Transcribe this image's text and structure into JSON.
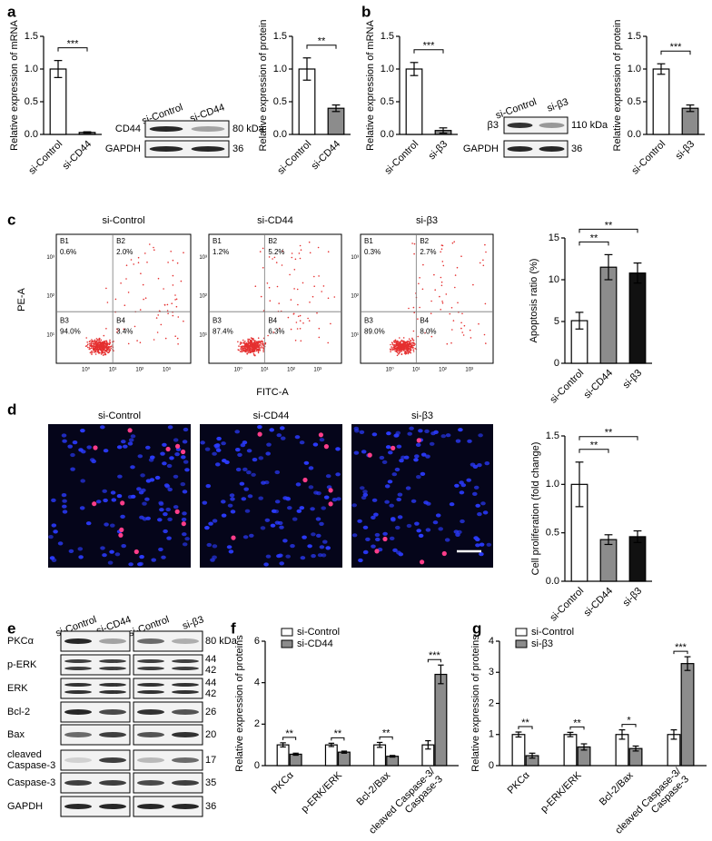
{
  "panel_labels": [
    "a",
    "b",
    "c",
    "d",
    "e",
    "f",
    "g"
  ],
  "chart_data": [
    {
      "type": "bar",
      "y_label": "Relative expression of mRNA",
      "categories": [
        "si-Control",
        "si-CD44"
      ],
      "values": [
        1.0,
        0.03
      ],
      "errors": [
        0.13,
        0.01
      ],
      "colors": [
        "#ffffff",
        "#8c8c8c"
      ],
      "ylim": [
        0,
        1.5
      ],
      "yticks": [
        {
          "value": 0,
          "label": "0.0"
        },
        0.5,
        {
          "value": 1,
          "label": "1.0"
        },
        1.5
      ],
      "significance": [
        "***"
      ]
    },
    {
      "type": "bar",
      "y_label": "Relative expression of protein",
      "categories": [
        "si-Control",
        "si-CD44"
      ],
      "values": [
        1.0,
        0.4
      ],
      "errors": [
        0.17,
        0.05
      ],
      "colors": [
        "#ffffff",
        "#8c8c8c"
      ],
      "ylim": [
        0,
        1.5
      ],
      "yticks": [
        {
          "value": 0,
          "label": "0.0"
        },
        0.5,
        {
          "value": 1,
          "label": "1.0"
        },
        1.5
      ],
      "significance": [
        "**"
      ]
    },
    {
      "type": "bar",
      "y_label": "Relative expression of mRNA",
      "categories": [
        "si-Control",
        "si-β3"
      ],
      "values": [
        1.0,
        0.06
      ],
      "errors": [
        0.1,
        0.04
      ],
      "colors": [
        "#ffffff",
        "#8c8c8c"
      ],
      "ylim": [
        0,
        1.5
      ],
      "yticks": [
        {
          "value": 0,
          "label": "0.0"
        },
        0.5,
        {
          "value": 1,
          "label": "1.0"
        },
        1.5
      ],
      "significance": [
        "***"
      ]
    },
    {
      "type": "bar",
      "y_label": "Relative expression of protein",
      "categories": [
        "si-Control",
        "si-β3"
      ],
      "values": [
        1.0,
        0.4
      ],
      "errors": [
        0.08,
        0.05
      ],
      "colors": [
        "#ffffff",
        "#8c8c8c"
      ],
      "ylim": [
        0,
        1.5
      ],
      "yticks": [
        {
          "value": 0,
          "label": "0.0"
        },
        0.5,
        {
          "value": 1,
          "label": "1.0"
        },
        1.5
      ],
      "significance": [
        "***"
      ]
    },
    {
      "type": "bar",
      "y_label": "Apoptosis ratio (%)",
      "categories": [
        "si-Control",
        "si-CD44",
        "si-β3"
      ],
      "values": [
        5.1,
        11.5,
        10.8
      ],
      "errors": [
        1.0,
        1.5,
        1.2
      ],
      "colors": [
        "#ffffff",
        "#8c8c8c",
        "#111111"
      ],
      "ylim": [
        0,
        15
      ],
      "yticks": [
        0,
        5,
        10,
        15
      ],
      "significance": [
        "**",
        "**"
      ]
    },
    {
      "type": "bar",
      "y_label": "Cell proliferation (fold change)",
      "categories": [
        "si-Control",
        "si-CD44",
        "si-β3"
      ],
      "values": [
        1.0,
        0.43,
        0.46
      ],
      "errors": [
        0.23,
        0.05,
        0.06
      ],
      "colors": [
        "#ffffff",
        "#8c8c8c",
        "#111111"
      ],
      "ylim": [
        0,
        1.5
      ],
      "yticks": [
        {
          "value": 0,
          "label": "0.0"
        },
        0.5,
        {
          "value": 1,
          "label": "1.0"
        },
        1.5
      ],
      "significance": [
        "**",
        "**"
      ]
    },
    {
      "type": "grouped-bar",
      "y_label": "Relative expression of proteins",
      "categories": [
        "PKCα",
        "p-ERK/ERK",
        "Bcl-2/Bax",
        "cleaved Caspase-3/\nCaspase-3"
      ],
      "series": [
        {
          "name": "si-Control",
          "color": "#ffffff",
          "values": [
            1,
            1,
            1,
            1
          ],
          "errors": [
            0.1,
            0.08,
            0.12,
            0.2
          ]
        },
        {
          "name": "si-CD44",
          "color": "#8c8c8c",
          "values": [
            0.55,
            0.65,
            0.45,
            4.4
          ],
          "errors": [
            0.05,
            0.05,
            0.04,
            0.45
          ]
        }
      ],
      "ylim": [
        0,
        6
      ],
      "yticks": [
        0,
        2,
        4,
        6
      ],
      "legend": "upper-left",
      "significance": [
        "**",
        "**",
        "**",
        "***"
      ]
    },
    {
      "type": "grouped-bar",
      "y_label": "Relative expression of proteins",
      "categories": [
        "PKCα",
        "p-ERK/ERK",
        "Bcl-2/Bax",
        "cleaved Caspase-3/\nCaspase-3"
      ],
      "series": [
        {
          "name": "si-Control",
          "color": "#ffffff",
          "values": [
            1,
            1,
            1,
            1
          ],
          "errors": [
            0.08,
            0.07,
            0.15,
            0.15
          ]
        },
        {
          "name": "si-β3",
          "color": "#8c8c8c",
          "values": [
            0.32,
            0.6,
            0.55,
            3.28
          ],
          "errors": [
            0.08,
            0.1,
            0.08,
            0.22
          ]
        }
      ],
      "ylim": [
        0,
        4
      ],
      "yticks": [
        0,
        1,
        2,
        3,
        4
      ],
      "legend": "upper-left",
      "significance": [
        "**",
        "**",
        "*",
        "***"
      ]
    }
  ],
  "blots": [
    {
      "lanes": [
        "si-Control",
        "si-CD44"
      ],
      "rows": [
        {
          "label": "CD44",
          "sizes": [
            "80 kDa"
          ]
        },
        {
          "label": "GAPDH",
          "sizes": [
            "36"
          ]
        }
      ]
    },
    {
      "lanes": [
        "si-Control",
        "si-β3"
      ],
      "rows": [
        {
          "label": "β3",
          "sizes": [
            "110 kDa"
          ]
        },
        {
          "label": "GAPDH",
          "sizes": [
            "36"
          ]
        }
      ]
    },
    {
      "lanes": [
        "si-Control",
        "si-CD44",
        "si-Control",
        "si-β3"
      ],
      "rows": [
        {
          "label": "PKCα",
          "sizes": [
            "80 kDa"
          ]
        },
        {
          "label": "p-ERK",
          "sizes": [
            "44",
            "42"
          ]
        },
        {
          "label": "ERK",
          "sizes": [
            "44",
            "42"
          ]
        },
        {
          "label": "Bcl-2",
          "sizes": [
            "26"
          ]
        },
        {
          "label": "Bax",
          "sizes": [
            "20"
          ]
        },
        {
          "label": "cleaved\nCaspase-3",
          "sizes": [
            "17"
          ]
        },
        {
          "label": "Caspase-3",
          "sizes": [
            "35"
          ]
        },
        {
          "label": "GAPDH",
          "sizes": [
            "36"
          ]
        }
      ]
    }
  ],
  "flow": {
    "x_label": "FITC-A",
    "y_label": "PE-A",
    "xticks": [
      "10⁰",
      "10¹",
      "10²",
      "10³"
    ],
    "yticks": [
      "10¹",
      "10²",
      "10³"
    ],
    "plots": [
      {
        "title": "si-Control",
        "quadrants": [
          {
            "name": "B1",
            "pct": "0.6%"
          },
          {
            "name": "B2",
            "pct": "2.0%"
          },
          {
            "name": "B3",
            "pct": "94.0%"
          },
          {
            "name": "B4",
            "pct": "3.4%"
          }
        ]
      },
      {
        "title": "si-CD44",
        "quadrants": [
          {
            "name": "B1",
            "pct": "1.2%"
          },
          {
            "name": "B2",
            "pct": "5.2%"
          },
          {
            "name": "B3",
            "pct": "87.4%"
          },
          {
            "name": "B4",
            "pct": "6.3%"
          }
        ]
      },
      {
        "title": "si-β3",
        "quadrants": [
          {
            "name": "B1",
            "pct": "0.3%"
          },
          {
            "name": "B2",
            "pct": "2.7%"
          },
          {
            "name": "B3",
            "pct": "89.0%"
          },
          {
            "name": "B4",
            "pct": "8.0%"
          }
        ]
      }
    ]
  },
  "micrographs": {
    "titles": [
      "si-Control",
      "si-CD44",
      "si-β3"
    ]
  }
}
